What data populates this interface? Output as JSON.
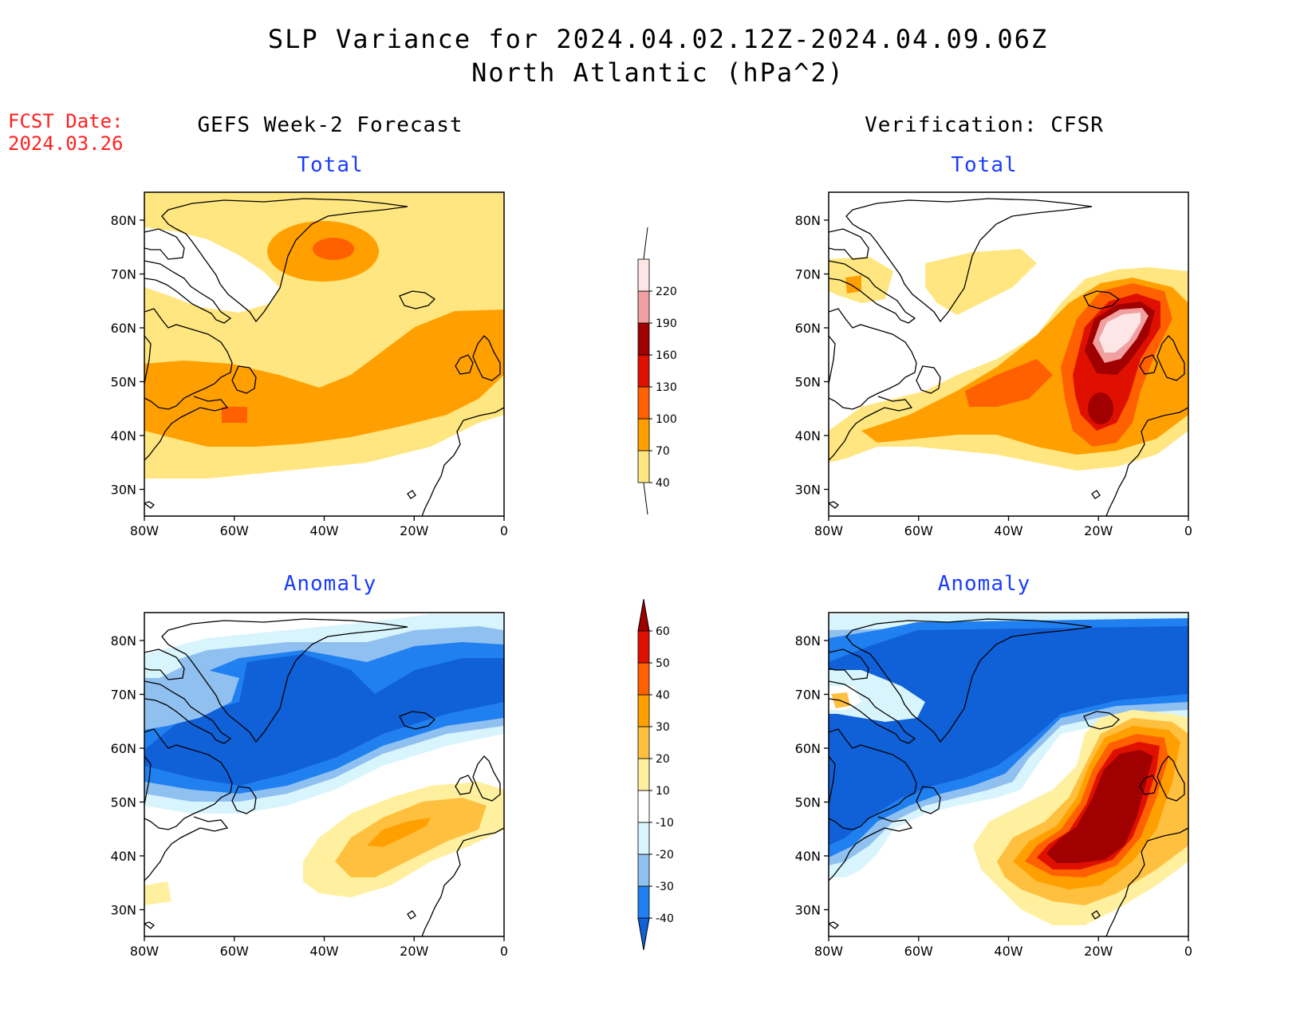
{
  "title": {
    "line1": "SLP Variance for 2024.04.02.12Z-2024.04.09.06Z",
    "line2": "North Atlantic (hPa^2)"
  },
  "fcst_date": {
    "label": "FCST Date:",
    "value": "2024.03.26"
  },
  "columns": {
    "forecast": "GEFS Week-2 Forecast",
    "verification": "Verification: CFSR"
  },
  "panels": {
    "total_label": "Total",
    "anomaly_label": "Anomaly"
  },
  "axes": {
    "lat_labels": [
      "80N",
      "70N",
      "60N",
      "50N",
      "40N",
      "30N"
    ],
    "lon_labels": [
      "80W",
      "60W",
      "40W",
      "20W",
      "0"
    ]
  },
  "colorbars": {
    "total": {
      "levels": [
        "40",
        "70",
        "100",
        "130",
        "160",
        "190",
        "220"
      ],
      "colors": [
        "#ffe680",
        "#ffa000",
        "#ff6000",
        "#e01000",
        "#a00000",
        "#f0a0a0",
        "#fde6e6"
      ]
    },
    "anomaly": {
      "levels": [
        "-40",
        "-30",
        "-20",
        "-10",
        "10",
        "20",
        "30",
        "40",
        "50",
        "60"
      ],
      "colors": [
        "#1060d8",
        "#2080f0",
        "#90c0f0",
        "#d8f4fc",
        "#ffffff",
        "#fff0a0",
        "#ffc040",
        "#ffa000",
        "#ff6000",
        "#e01000",
        "#a00000"
      ]
    }
  },
  "colors": {
    "title_red": "#ff2020",
    "subtitle_blue": "#1a3cff"
  }
}
